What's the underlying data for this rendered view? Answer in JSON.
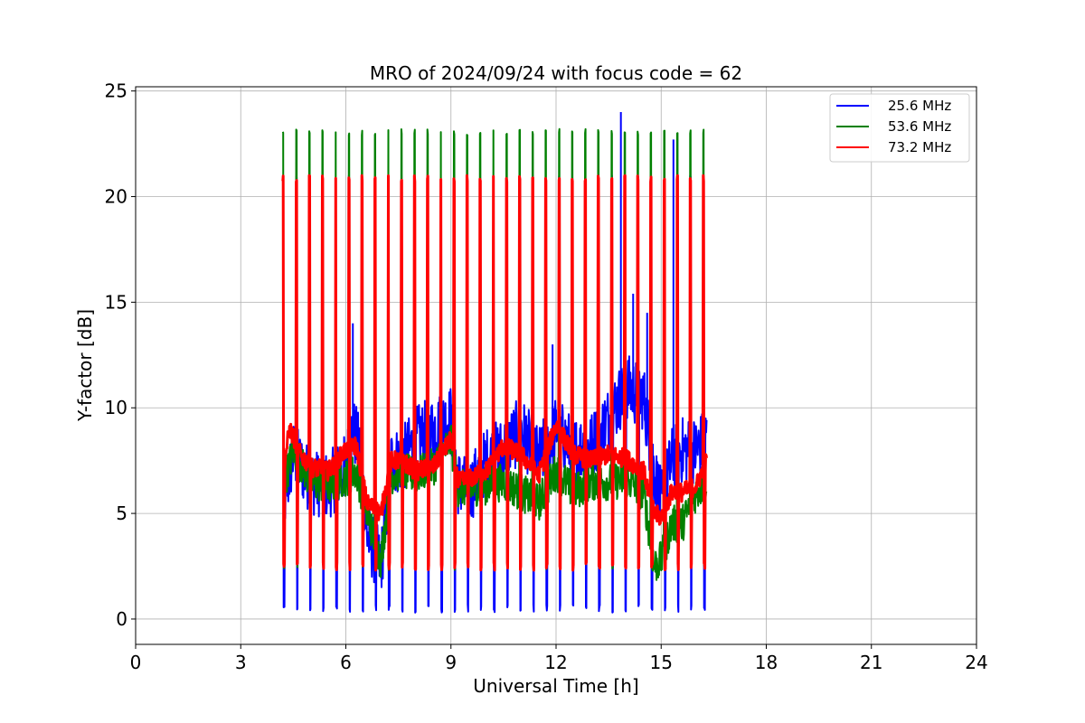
{
  "chart_data": {
    "type": "line",
    "title": "MRO of 2024/09/24 with focus code = 62",
    "xlabel": "Universal Time [h]",
    "ylabel": "Y-factor [dB]",
    "xlim": [
      0,
      24
    ],
    "ylim": [
      -1.2,
      25.2
    ],
    "xticks": [
      0,
      3,
      6,
      9,
      12,
      15,
      18,
      21,
      24
    ],
    "yticks": [
      0,
      5,
      10,
      15,
      20,
      25
    ],
    "grid": true,
    "legend_position": "top-right",
    "calibration": {
      "start": 4.2,
      "end": 16.3,
      "period": 0.375,
      "pulse_width": 0.05
    },
    "series": [
      {
        "name": "25.6 MHz",
        "color": "#0000ff",
        "pulse_top": 21.0,
        "pulse_low": 0.3,
        "baseline": [
          [
            4.2,
            5.2
          ],
          [
            4.5,
            7.8
          ],
          [
            5.0,
            6.5
          ],
          [
            5.5,
            6.3
          ],
          [
            6.0,
            7.2
          ],
          [
            6.2,
            9.0
          ],
          [
            6.4,
            8.0
          ],
          [
            6.6,
            4.0
          ],
          [
            7.0,
            2.5
          ],
          [
            7.3,
            7.5
          ],
          [
            7.6,
            7.5
          ],
          [
            8.0,
            8.5
          ],
          [
            8.5,
            9.0
          ],
          [
            9.0,
            9.5
          ],
          [
            9.2,
            6.5
          ],
          [
            9.5,
            6.0
          ],
          [
            10.0,
            7.5
          ],
          [
            10.5,
            8.0
          ],
          [
            11.0,
            9.0
          ],
          [
            11.5,
            7.5
          ],
          [
            12.0,
            9.0
          ],
          [
            12.5,
            8.0
          ],
          [
            13.0,
            8.2
          ],
          [
            13.5,
            9.5
          ],
          [
            14.0,
            11.0
          ],
          [
            14.5,
            10.5
          ],
          [
            14.8,
            7.0
          ],
          [
            15.0,
            5.5
          ],
          [
            15.3,
            7.5
          ],
          [
            15.6,
            8.0
          ],
          [
            16.0,
            8.0
          ],
          [
            16.3,
            8.5
          ]
        ],
        "spikes": [
          [
            6.2,
            14.0
          ],
          [
            13.85,
            24.0
          ],
          [
            14.2,
            15.4
          ],
          [
            14.6,
            14.5
          ],
          [
            15.35,
            22.7
          ],
          [
            11.9,
            13.0
          ]
        ]
      },
      {
        "name": "53.6 MHz",
        "color": "#008000",
        "pulse_top": 23.2,
        "pulse_low": 2.3,
        "baseline": [
          [
            4.2,
            6.2
          ],
          [
            4.5,
            8.0
          ],
          [
            5.0,
            6.5
          ],
          [
            5.5,
            6.3
          ],
          [
            6.0,
            6.7
          ],
          [
            6.3,
            7.0
          ],
          [
            6.6,
            5.0
          ],
          [
            7.0,
            2.8
          ],
          [
            7.3,
            6.8
          ],
          [
            7.6,
            7.0
          ],
          [
            8.0,
            6.8
          ],
          [
            8.5,
            7.2
          ],
          [
            9.0,
            8.4
          ],
          [
            9.2,
            6.2
          ],
          [
            9.5,
            6.2
          ],
          [
            10.0,
            6.3
          ],
          [
            10.5,
            6.5
          ],
          [
            11.0,
            6.0
          ],
          [
            11.5,
            5.5
          ],
          [
            12.0,
            7.0
          ],
          [
            12.5,
            6.0
          ],
          [
            13.0,
            6.5
          ],
          [
            13.5,
            6.5
          ],
          [
            14.0,
            6.6
          ],
          [
            14.5,
            6.0
          ],
          [
            14.8,
            2.5
          ],
          [
            15.0,
            2.8
          ],
          [
            15.3,
            4.5
          ],
          [
            15.6,
            4.5
          ],
          [
            16.0,
            6.0
          ],
          [
            16.3,
            6.5
          ]
        ],
        "spikes": []
      },
      {
        "name": "73.2 MHz",
        "color": "#ff0000",
        "pulse_top": 21.0,
        "pulse_low": 2.3,
        "baseline": [
          [
            4.2,
            7.0
          ],
          [
            4.4,
            9.0
          ],
          [
            4.7,
            7.8
          ],
          [
            5.0,
            7.2
          ],
          [
            5.5,
            7.0
          ],
          [
            6.0,
            8.0
          ],
          [
            6.3,
            8.2
          ],
          [
            6.6,
            5.5
          ],
          [
            7.0,
            5.0
          ],
          [
            7.3,
            7.5
          ],
          [
            7.6,
            7.5
          ],
          [
            8.0,
            7.0
          ],
          [
            8.5,
            7.2
          ],
          [
            9.0,
            8.5
          ],
          [
            9.2,
            6.5
          ],
          [
            9.5,
            6.6
          ],
          [
            10.0,
            7.0
          ],
          [
            10.5,
            8.2
          ],
          [
            11.0,
            7.8
          ],
          [
            11.5,
            6.8
          ],
          [
            12.0,
            9.2
          ],
          [
            12.5,
            7.8
          ],
          [
            13.0,
            7.5
          ],
          [
            13.5,
            7.8
          ],
          [
            14.0,
            7.6
          ],
          [
            14.5,
            7.0
          ],
          [
            14.8,
            5.0
          ],
          [
            15.0,
            4.8
          ],
          [
            15.3,
            6.0
          ],
          [
            15.6,
            6.0
          ],
          [
            16.0,
            6.3
          ],
          [
            16.3,
            7.5
          ]
        ],
        "spikes": []
      }
    ]
  }
}
